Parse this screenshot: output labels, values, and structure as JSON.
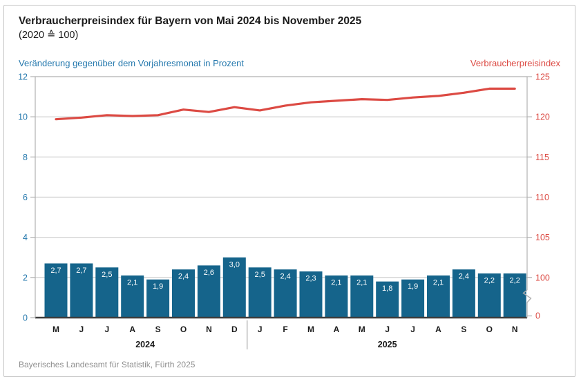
{
  "header": {
    "title": "Verbraucherpreisindex für Bayern von Mai 2024 bis November 2025",
    "subtitle": "(2020 ≙ 100)",
    "left_axis_label": "Veränderung gegenüber dem Vorjahresmonat in Prozent",
    "right_axis_label": "Verbraucherpreisindex"
  },
  "chart_data": {
    "type": "bar+line",
    "categories": [
      "M",
      "J",
      "J",
      "A",
      "S",
      "O",
      "N",
      "D",
      "J",
      "F",
      "M",
      "A",
      "M",
      "J",
      "J",
      "A",
      "S",
      "O",
      "N"
    ],
    "year_groups": [
      {
        "label": "2024",
        "start": 0,
        "end": 7
      },
      {
        "label": "2025",
        "start": 8,
        "end": 18
      }
    ],
    "left_axis": {
      "label": "Veränderung gegenüber dem Vorjahresmonat in Prozent",
      "ticks": [
        0,
        2,
        4,
        6,
        8,
        10,
        12
      ],
      "range": [
        0,
        12
      ],
      "unit": "Prozent"
    },
    "right_axis": {
      "label": "Verbraucherpreisindex",
      "ticks": [
        100,
        105,
        110,
        115,
        120,
        125
      ],
      "bottom_tick": 0,
      "axis_break": "between 0 and 100",
      "alignment": "right 100..125 aligns with left 2..12"
    },
    "series": [
      {
        "name": "Veränderung gegenüber dem Vorjahresmonat in Prozent",
        "type": "bar",
        "axis": "left",
        "values": [
          2.7,
          2.7,
          2.5,
          2.1,
          1.9,
          2.4,
          2.6,
          3.0,
          2.5,
          2.4,
          2.3,
          2.1,
          2.1,
          1.8,
          1.9,
          2.1,
          2.4,
          2.2,
          2.2
        ]
      },
      {
        "name": "Verbraucherpreisindex",
        "type": "line",
        "axis": "right",
        "values": [
          119.7,
          119.9,
          120.2,
          120.1,
          120.2,
          120.9,
          120.6,
          121.2,
          120.8,
          121.4,
          121.8,
          122.0,
          122.2,
          122.1,
          122.4,
          122.6,
          123.0,
          123.5,
          123.5
        ]
      }
    ],
    "grid": "horizontal gridlines at left-axis ticks",
    "legend_position": "colored axis titles above chart"
  },
  "footer": {
    "source": "Bayerisches Landesamt für Statistik, Fürth 2025"
  },
  "colors": {
    "bar": "#15648b",
    "bar_label": "#ffffff",
    "line": "#dc4a43",
    "blue_text": "#2478ad",
    "red_text": "#dc4a43",
    "grid": "#cccccc",
    "axis": "#b0b0b0",
    "baseline": "#3d3d3d",
    "divider": "#aaaaaa",
    "text": "#1a1a1a",
    "muted": "#8e8e8e",
    "frame_border": "#c5c5c5"
  }
}
